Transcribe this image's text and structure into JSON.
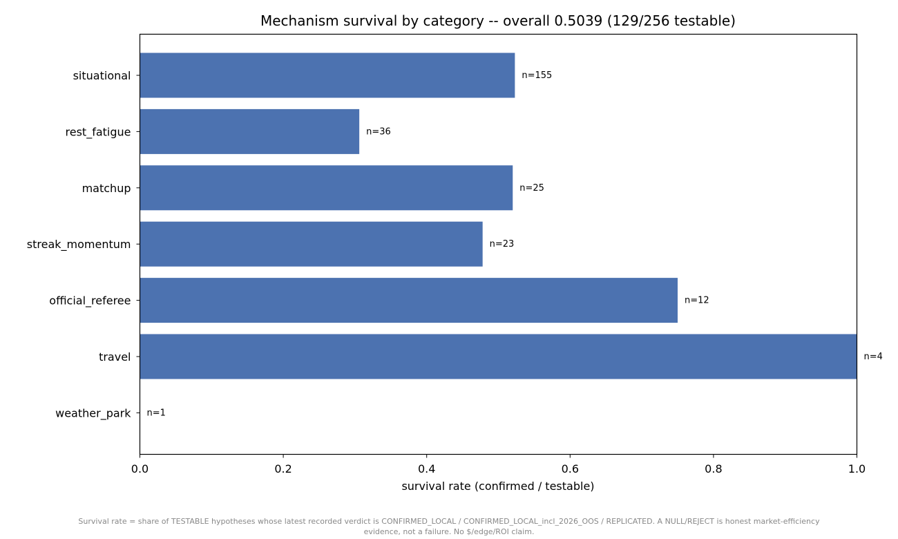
{
  "chart_data": {
    "type": "bar",
    "orientation": "horizontal",
    "title": "Mechanism survival by category -- overall 0.5039 (129/256 testable)",
    "xlabel": "survival rate (confirmed / testable)",
    "ylabel": "",
    "xlim": [
      0,
      1
    ],
    "xticks": [
      "0.0",
      "0.2",
      "0.4",
      "0.6",
      "0.8",
      "1.0"
    ],
    "xtick_values": [
      0,
      0.2,
      0.4,
      0.6,
      0.8,
      1.0
    ],
    "categories": [
      "situational",
      "rest_fatigue",
      "matchup",
      "streak_momentum",
      "official_referee",
      "travel",
      "weather_park"
    ],
    "values": [
      0.523,
      0.306,
      0.52,
      0.478,
      0.75,
      1.0,
      0.0
    ],
    "annotations": [
      "n=155",
      "n=36",
      "n=25",
      "n=23",
      "n=12",
      "n=4",
      "n=1"
    ],
    "bar_color": "#4c72b0",
    "grid": false,
    "legend": "none"
  },
  "footnote": {
    "line1": "Survival rate = share of TESTABLE hypotheses whose latest recorded verdict is CONFIRMED_LOCAL / CONFIRMED_LOCAL_incl_2026_OOS / REPLICATED. A NULL/REJECT is honest market-efficiency",
    "line2": "evidence, not a failure. No $/edge/ROI claim."
  }
}
